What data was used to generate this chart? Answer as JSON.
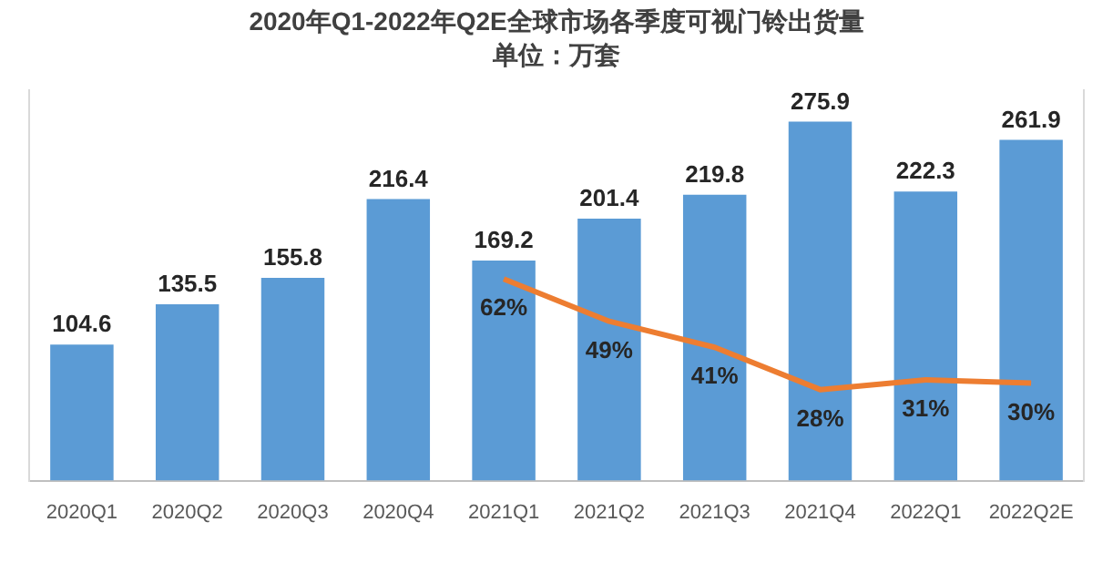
{
  "chart_data": {
    "type": "bar",
    "title": "2020年Q1-2022年Q2E全球市场各季度可视门铃出货量",
    "subtitle": "单位：万套",
    "categories": [
      "2020Q1",
      "2020Q2",
      "2020Q3",
      "2020Q4",
      "2021Q1",
      "2021Q2",
      "2021Q3",
      "2021Q4",
      "2022Q1",
      "2022Q2E"
    ],
    "series": [
      {
        "color": "#5b9bd5",
        "values": [
          104.6,
          135.5,
          155.8,
          216.4,
          169.2,
          201.4,
          219.8,
          275.9,
          222.3,
          261.9
        ]
      },
      {
        "type": "line",
        "axis": "y2",
        "color": "#ed7d31",
        "values": [
          null,
          null,
          null,
          null,
          62,
          49,
          41,
          28,
          31,
          30
        ],
        "value_labels": [
          null,
          null,
          null,
          null,
          "62%",
          "49%",
          "41%",
          "28%",
          "31%",
          "30%"
        ]
      }
    ],
    "data_labels": true,
    "legend": false,
    "grid": false,
    "tick_labels": "x",
    "marker": "none"
  }
}
